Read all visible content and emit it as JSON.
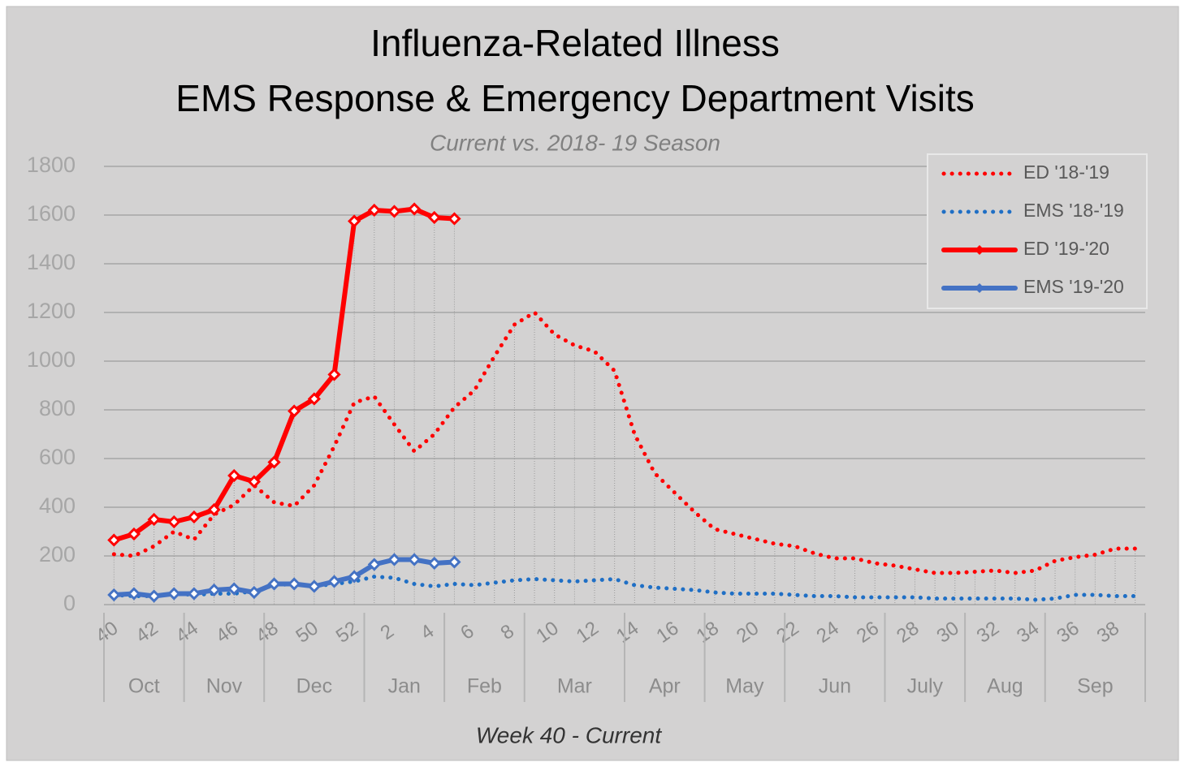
{
  "chart_data": {
    "type": "line",
    "title": "Influenza-Related Illness",
    "subtitle": "EMS Response & Emergency Department Visits",
    "subtitle2": "Current vs. 2018- 19 Season",
    "x_label": "Week 40 - Current",
    "categories": [
      "40",
      null,
      "42",
      null,
      "44",
      null,
      "46",
      null,
      "48",
      null,
      "50",
      null,
      "52",
      null,
      "2",
      null,
      "4",
      null,
      "6",
      null,
      "8",
      null,
      "10",
      null,
      "12",
      null,
      "14",
      null,
      "16",
      null,
      "18",
      null,
      "20",
      null,
      "22",
      null,
      "24",
      null,
      "26",
      null,
      "28",
      null,
      "30",
      null,
      "32",
      null,
      "34",
      null,
      "36",
      null,
      "38",
      null
    ],
    "months": [
      "Oct",
      "Nov",
      "Dec",
      "Jan",
      "Feb",
      "Mar",
      "Apr",
      "May",
      "Jun",
      "July",
      "Aug",
      "Sep"
    ],
    "month_weeks": [
      4,
      4,
      5,
      4,
      4,
      5,
      4,
      4,
      5,
      4,
      4,
      5
    ],
    "ylim": [
      0,
      1800
    ],
    "yticks": [
      0,
      200,
      400,
      600,
      800,
      1000,
      1200,
      1400,
      1600,
      1800
    ],
    "grid": true,
    "legend": "top-right",
    "series": [
      {
        "name": "ED '18-'19",
        "color": "#ff0000",
        "style": "dotted",
        "values": [
          207,
          200,
          240,
          300,
          267,
          370,
          410,
          490,
          420,
          405,
          490,
          650,
          830,
          855,
          740,
          630,
          700,
          810,
          880,
          1020,
          1150,
          1200,
          1110,
          1065,
          1040,
          960,
          700,
          540,
          460,
          380,
          310,
          290,
          270,
          250,
          240,
          210,
          190,
          190,
          170,
          160,
          145,
          130,
          130,
          135,
          140,
          130,
          140,
          180,
          195,
          205,
          230,
          230
        ]
      },
      {
        "name": "EMS '18-'19",
        "color": "#1f6fc5",
        "style": "dotted",
        "values": [
          40,
          35,
          35,
          45,
          40,
          45,
          45,
          55,
          80,
          85,
          75,
          85,
          95,
          115,
          110,
          85,
          75,
          85,
          80,
          90,
          100,
          105,
          100,
          95,
          100,
          105,
          80,
          70,
          65,
          60,
          50,
          45,
          45,
          45,
          40,
          35,
          35,
          30,
          30,
          30,
          30,
          25,
          25,
          25,
          25,
          25,
          20,
          25,
          40,
          40,
          35,
          35
        ]
      },
      {
        "name": "ED '19-'20",
        "color": "#ff0000",
        "style": "solid",
        "marker": "diamond",
        "values": [
          265,
          290,
          350,
          340,
          360,
          390,
          530,
          505,
          585,
          795,
          845,
          945,
          1575,
          1620,
          1615,
          1625,
          1590,
          1585,
          null,
          null,
          null,
          null,
          null,
          null,
          null,
          null,
          null,
          null,
          null,
          null,
          null,
          null,
          null,
          null,
          null,
          null,
          null,
          null,
          null,
          null,
          null,
          null,
          null,
          null,
          null,
          null,
          null,
          null,
          null,
          null,
          null,
          null
        ]
      },
      {
        "name": "EMS '19-'20",
        "color": "#4472c4",
        "style": "solid",
        "marker": "diamond",
        "values": [
          40,
          45,
          35,
          45,
          45,
          60,
          65,
          50,
          85,
          85,
          75,
          95,
          115,
          165,
          185,
          185,
          170,
          175,
          null,
          null,
          null,
          null,
          null,
          null,
          null,
          null,
          null,
          null,
          null,
          null,
          null,
          null,
          null,
          null,
          null,
          null,
          null,
          null,
          null,
          null,
          null,
          null,
          null,
          null,
          null,
          null,
          null,
          null,
          null,
          null,
          null,
          null
        ]
      }
    ]
  }
}
